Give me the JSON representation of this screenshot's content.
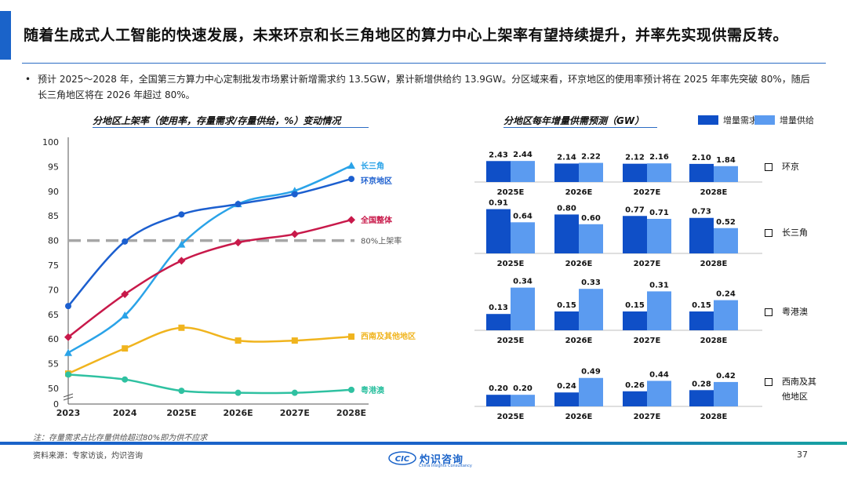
{
  "title": "随着生成式人工智能的快速发展，未来环京和长三角地区的算力中心上架率有望持续提升，并率先实现供需反转。",
  "bullet": "预计 2025～2028 年，全国第三方算力中心定制批发市场累计新增需求约 13.5GW，累计新增供给约 13.9GW。分区域来看，环京地区的使用率预计将在 2025 年率先突破 80%，随后长三角地区将在 2026 年超过 80%。",
  "footnote": "注：存量需求占比存量供给超过80%即为供不应求",
  "source": "资料来源：专家访谈，灼识咨询",
  "page_number": "37",
  "logo": {
    "mark": "CIC",
    "name": "灼识咨询",
    "sub": "China Insights Consultancy"
  },
  "colors": {
    "accent": "#1a63c9",
    "demand": "#0f4fc7",
    "supply": "#5b9bf0",
    "lines": {
      "长三角": "#2aa3e8",
      "环京地区": "#1c5fcf",
      "全国整体": "#c8194a",
      "西南及其他地区": "#f0b41e",
      "粤港澳": "#2fc1a1"
    },
    "threshold": "#a6a6a6"
  },
  "chart_data": [
    {
      "type": "line",
      "title": "分地区上架率（使用率，存量需求/存量供给，%）变动情况",
      "categories": [
        "2023",
        "2024",
        "2025E",
        "2026E",
        "2027E",
        "2028E"
      ],
      "ylim": [
        50,
        100
      ],
      "y_ticks": [
        "0",
        "50",
        "55",
        "60",
        "65",
        "70",
        "75",
        "80",
        "85",
        "90",
        "95",
        "100"
      ],
      "axis_break": true,
      "series": [
        {
          "name": "长三角",
          "values": [
            57.2,
            64.8,
            79.2,
            87.4,
            90.1,
            95.2
          ],
          "marker": "triangle"
        },
        {
          "name": "环京地区",
          "values": [
            66.7,
            79.8,
            85.3,
            87.4,
            89.4,
            92.5
          ],
          "marker": "circle"
        },
        {
          "name": "全国整体",
          "values": [
            60.4,
            69.1,
            75.9,
            79.6,
            81.3,
            84.2
          ],
          "marker": "diamond"
        },
        {
          "name": "西南及其他地区",
          "values": [
            53.0,
            58.1,
            62.3,
            59.7,
            59.7,
            60.5
          ],
          "marker": "square"
        },
        {
          "name": "粤港澳",
          "values": [
            52.8,
            51.8,
            49.5,
            49.1,
            49.1,
            49.7
          ],
          "marker": "circle"
        }
      ],
      "threshold": {
        "value": 80,
        "label": "80%上架率"
      }
    },
    {
      "type": "bar",
      "title": "分地区每年增量供需预测（GW）",
      "categories": [
        "2025E",
        "2026E",
        "2027E",
        "2028E"
      ],
      "legend": [
        "增量需求",
        "增量供给"
      ],
      "panels": [
        {
          "region_lines": [
            "环京"
          ],
          "demand": [
            "2.43",
            "2.14",
            "2.12",
            "2.10"
          ],
          "supply": [
            "2.44",
            "2.22",
            "2.16",
            "1.84"
          ]
        },
        {
          "region_lines": [
            "长三角"
          ],
          "demand": [
            "0.91",
            "0.80",
            "0.77",
            "0.73"
          ],
          "supply": [
            "0.64",
            "0.60",
            "0.71",
            "0.52"
          ]
        },
        {
          "region_lines": [
            "粤港澳"
          ],
          "demand": [
            "0.13",
            "0.15",
            "0.15",
            "0.15"
          ],
          "supply": [
            "0.34",
            "0.33",
            "0.31",
            "0.24"
          ]
        },
        {
          "region_lines": [
            "西南及其",
            "他地区"
          ],
          "demand": [
            "0.20",
            "0.24",
            "0.26",
            "0.28"
          ],
          "supply": [
            "0.20",
            "0.49",
            "0.44",
            "0.42"
          ]
        }
      ]
    }
  ]
}
